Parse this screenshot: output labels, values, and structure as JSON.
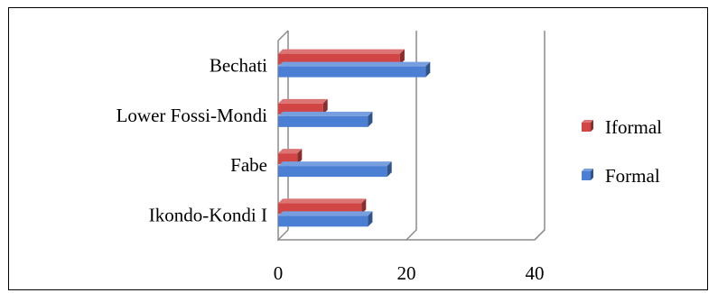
{
  "chart_data": {
    "type": "bar",
    "orientation": "horizontal",
    "style": "3d-clustered",
    "title": "",
    "xlabel": "",
    "ylabel": "",
    "categories": [
      "Ikondo-Kondi I",
      "Fabe",
      "Lower Fossi-Mondi",
      "Bechati"
    ],
    "series": [
      {
        "name": "Iformal",
        "color": "#d24545",
        "values": [
          13,
          3,
          7,
          19
        ]
      },
      {
        "name": "Formal",
        "color": "#4a7fd4",
        "values": [
          14,
          17,
          14,
          23
        ]
      }
    ],
    "xlim": [
      0,
      40
    ],
    "xticks": [
      "0",
      "20",
      "40"
    ],
    "grid": true,
    "legend": "right"
  }
}
